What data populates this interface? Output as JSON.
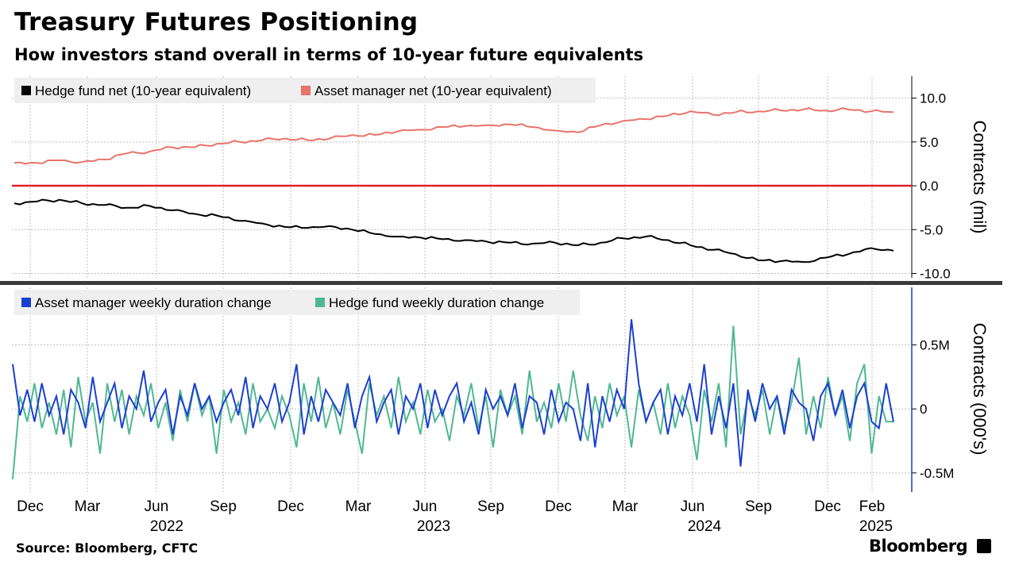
{
  "title": "Treasury Futures Positioning",
  "subtitle": "How investors stand overall in terms of 10-year future equivalents",
  "source": "Source: Bloomberg, CFTC",
  "brand": "Bloomberg",
  "colors": {
    "hedge_fund_net": "#000000",
    "asset_manager_net": "#e8736b",
    "zero_line": "#e0202b",
    "asset_manager_change": "#1c3fd1",
    "hedge_fund_change": "#4fb893",
    "grid": "#bfbfbf",
    "legend_bg": "#efefef"
  },
  "x_axis": {
    "months": [
      "Dec",
      "Mar",
      "Jun",
      "Sep",
      "Dec",
      "Mar",
      "Jun",
      "Sep",
      "Dec",
      "Mar",
      "Jun",
      "Sep",
      "Dec",
      "Feb"
    ],
    "years": [
      "2022",
      "2023",
      "2024",
      "2025"
    ]
  },
  "chart_data": [
    {
      "type": "line",
      "ylabel": "Contracts (mil)",
      "ylim": [
        -10.5,
        12.5
      ],
      "yticks": [
        10.0,
        5.0,
        0.0,
        -5.0,
        -10.0
      ],
      "ytick_labels": [
        "10.0",
        "5.0",
        "0.0",
        "-5.0",
        "-10.0"
      ],
      "grid": true,
      "legend_position": "top-left",
      "x": [
        "2021-11",
        "2021-12",
        "2022-01",
        "2022-02",
        "2022-03",
        "2022-04",
        "2022-05",
        "2022-06",
        "2022-07",
        "2022-08",
        "2022-09",
        "2022-10",
        "2022-11",
        "2022-12",
        "2023-01",
        "2023-02",
        "2023-03",
        "2023-04",
        "2023-05",
        "2023-06",
        "2023-07",
        "2023-08",
        "2023-09",
        "2023-10",
        "2023-11",
        "2023-12",
        "2024-01",
        "2024-02",
        "2024-03",
        "2024-04",
        "2024-05",
        "2024-06",
        "2024-07",
        "2024-08",
        "2024-09",
        "2024-10",
        "2024-11",
        "2024-12",
        "2025-01",
        "2025-02"
      ],
      "series": [
        {
          "name": "Hedge fund net (10-year equivalent)",
          "values": [
            -2.0,
            -1.8,
            -1.6,
            -2.0,
            -2.2,
            -2.5,
            -2.3,
            -2.8,
            -3.2,
            -3.4,
            -4.0,
            -4.3,
            -4.7,
            -4.8,
            -4.6,
            -5.0,
            -5.5,
            -5.8,
            -5.9,
            -6.1,
            -6.2,
            -6.4,
            -6.5,
            -6.6,
            -6.5,
            -6.8,
            -6.5,
            -6.0,
            -5.8,
            -6.2,
            -6.8,
            -7.3,
            -7.8,
            -8.5,
            -8.6,
            -8.7,
            -8.2,
            -7.8,
            -7.1,
            -7.4
          ]
        },
        {
          "name": "Asset manager net (10-year equivalent)",
          "values": [
            2.6,
            2.6,
            2.9,
            2.7,
            3.0,
            3.7,
            3.9,
            4.4,
            4.4,
            4.8,
            5.0,
            5.2,
            5.4,
            5.2,
            5.4,
            5.8,
            5.8,
            6.2,
            6.4,
            6.7,
            6.8,
            6.9,
            7.0,
            6.7,
            6.3,
            6.1,
            6.9,
            7.4,
            7.6,
            8.0,
            8.5,
            8.1,
            8.4,
            8.5,
            8.6,
            8.7,
            8.6,
            8.7,
            8.5,
            8.4
          ]
        }
      ]
    },
    {
      "type": "line",
      "ylabel": "Contracts (000's)",
      "ylim": [
        -0.65,
        0.95
      ],
      "yticks": [
        0.5,
        0,
        -0.5
      ],
      "ytick_labels": [
        "0.5M",
        "0",
        "-0.5M"
      ],
      "grid": true,
      "legend_position": "top-left",
      "series": [
        {
          "name": "Asset manager weekly duration change",
          "values": [
            0.35,
            -0.05,
            0.15,
            -0.1,
            0.2,
            -0.05,
            0.1,
            -0.2,
            0.15,
            0.05,
            -0.15,
            0.25,
            -0.1,
            0.05,
            0.2,
            -0.15,
            0.1,
            0.0,
            0.3,
            -0.1,
            0.05,
            0.15,
            -0.2,
            0.1,
            -0.05,
            0.2,
            0.0,
            0.1,
            -0.1,
            0.05,
            0.15,
            -0.05,
            0.25,
            -0.15,
            0.1,
            0.0,
            0.2,
            -0.1,
            0.05,
            0.35,
            -0.2,
            0.1,
            -0.1,
            0.15,
            0.05,
            -0.05,
            0.2,
            -0.15,
            0.1,
            0.25,
            -0.1,
            0.05,
            0.15,
            -0.2,
            0.1,
            0.0,
            0.2,
            -0.15,
            0.15,
            -0.05,
            0.1,
            0.2,
            -0.1,
            0.05,
            -0.2,
            0.15,
            0.0,
            0.1,
            -0.05,
            0.2,
            -0.15,
            0.1,
            0.05,
            -0.2,
            0.15,
            -0.1,
            0.05,
            0.0,
            -0.25,
            0.2,
            -0.3,
            0.1,
            -0.1,
            0.15,
            0.0,
            0.7,
            0.2,
            -0.1,
            0.05,
            0.15,
            -0.2,
            0.1,
            -0.05,
            0.2,
            -0.1,
            0.35,
            -0.2,
            0.1,
            -0.15,
            0.2,
            -0.45,
            0.15,
            -0.1,
            0.2,
            0.0,
            0.1,
            -0.2,
            0.15,
            0.05,
            0.0,
            -0.25,
            0.1,
            0.2,
            -0.05,
            0.15,
            -0.15,
            0.1,
            0.2,
            -0.1,
            -0.15,
            0.2,
            -0.1
          ]
        },
        {
          "name": "Hedge fund weekly duration change",
          "values": [
            -0.55,
            0.1,
            -0.1,
            0.2,
            -0.15,
            0.05,
            -0.2,
            0.15,
            -0.3,
            0.25,
            -0.1,
            0.05,
            -0.35,
            0.2,
            -0.1,
            0.15,
            -0.2,
            0.1,
            -0.05,
            0.2,
            -0.15,
            0.05,
            -0.25,
            0.15,
            -0.1,
            0.2,
            -0.05,
            0.1,
            -0.35,
            0.15,
            -0.1,
            0.05,
            -0.2,
            0.2,
            -0.1,
            0.0,
            -0.15,
            0.1,
            -0.05,
            -0.3,
            0.2,
            -0.1,
            0.25,
            -0.15,
            0.05,
            -0.2,
            0.15,
            -0.1,
            -0.35,
            0.2,
            -0.05,
            0.1,
            -0.15,
            0.25,
            -0.1,
            0.05,
            -0.2,
            0.15,
            -0.1,
            0.0,
            -0.25,
            0.1,
            -0.05,
            0.2,
            -0.15,
            0.1,
            -0.3,
            0.15,
            -0.05,
            0.1,
            -0.2,
            0.3,
            -0.1,
            0.05,
            -0.15,
            0.2,
            -0.1,
            0.3,
            -0.05,
            -0.25,
            0.1,
            -0.15,
            0.2,
            -0.05,
            0.1,
            -0.3,
            0.15,
            -0.1,
            0.05,
            -0.2,
            0.2,
            -0.15,
            0.1,
            -0.05,
            -0.4,
            0.15,
            -0.1,
            0.2,
            -0.3,
            0.65,
            -0.2,
            0.1,
            -0.05,
            0.15,
            -0.2,
            0.1,
            -0.15,
            0.05,
            0.4,
            -0.2,
            0.1,
            -0.15,
            0.25,
            -0.05,
            0.1,
            -0.25,
            0.2,
            0.35,
            -0.35,
            0.1,
            -0.1,
            -0.1
          ]
        }
      ]
    }
  ]
}
